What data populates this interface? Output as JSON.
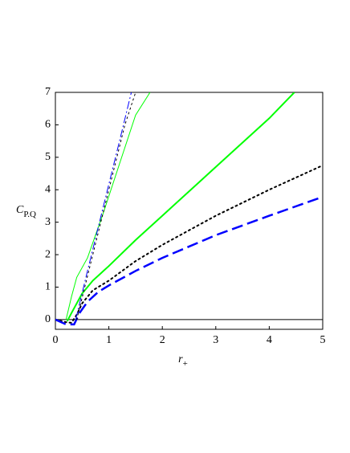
{
  "chart_data": {
    "type": "line",
    "xlabel": "r",
    "xlabel_sub": "+",
    "ylabel": "C",
    "ylabel_sub": "P.Q",
    "xlim": [
      0,
      5
    ],
    "ylim": [
      -0.3,
      7
    ],
    "xticks": [
      0,
      1,
      2,
      3,
      4,
      5
    ],
    "yticks": [
      0,
      1,
      2,
      3,
      4,
      5,
      6,
      7
    ],
    "series": [
      {
        "color": "#00ff00",
        "width": 2,
        "dash": "solid",
        "x": [
          0.22,
          0.3,
          0.5,
          0.7,
          1,
          1.5,
          2,
          3,
          4,
          4.47
        ],
        "values": [
          -0.05,
          0.2,
          0.8,
          1.2,
          1.65,
          2.45,
          3.2,
          4.7,
          6.2,
          7
        ]
      },
      {
        "color": "#000000",
        "width": 2,
        "dash": "dotted",
        "x": [
          0,
          0.2,
          0.3,
          0.4,
          0.5,
          0.7,
          1,
          1.5,
          2,
          3,
          4,
          5
        ],
        "values": [
          0,
          -0.08,
          -0.1,
          0.15,
          0.5,
          0.9,
          1.2,
          1.8,
          2.3,
          3.2,
          4.0,
          4.75
        ]
      },
      {
        "color": "#0000ff",
        "width": 2.5,
        "dash": "dashed",
        "x": [
          0,
          0.2,
          0.35,
          0.45,
          0.6,
          0.8,
          1,
          1.5,
          2,
          3,
          4,
          5
        ],
        "values": [
          0,
          -0.15,
          -0.15,
          0.2,
          0.55,
          0.85,
          1.05,
          1.5,
          1.9,
          2.6,
          3.2,
          3.78
        ]
      },
      {
        "color": "#00ff00",
        "width": 1,
        "dash": "solid",
        "x": [
          0.2,
          0.3,
          0.4,
          0.6,
          0.9,
          1.2,
          1.5,
          1.77
        ],
        "values": [
          0,
          0.7,
          1.3,
          1.9,
          3.3,
          4.8,
          6.3,
          7
        ]
      },
      {
        "color": "#0000ff",
        "width": 1,
        "dash": "dashdot",
        "x": [
          0.38,
          0.6,
          0.9,
          1.2,
          1.42
        ],
        "values": [
          0,
          1.5,
          3.5,
          5.5,
          7
        ]
      },
      {
        "color": "#000000",
        "width": 1,
        "dash": "dotted",
        "x": [
          0.4,
          0.7,
          1,
          1.3,
          1.5
        ],
        "values": [
          0,
          2,
          4,
          6,
          7
        ]
      }
    ]
  }
}
